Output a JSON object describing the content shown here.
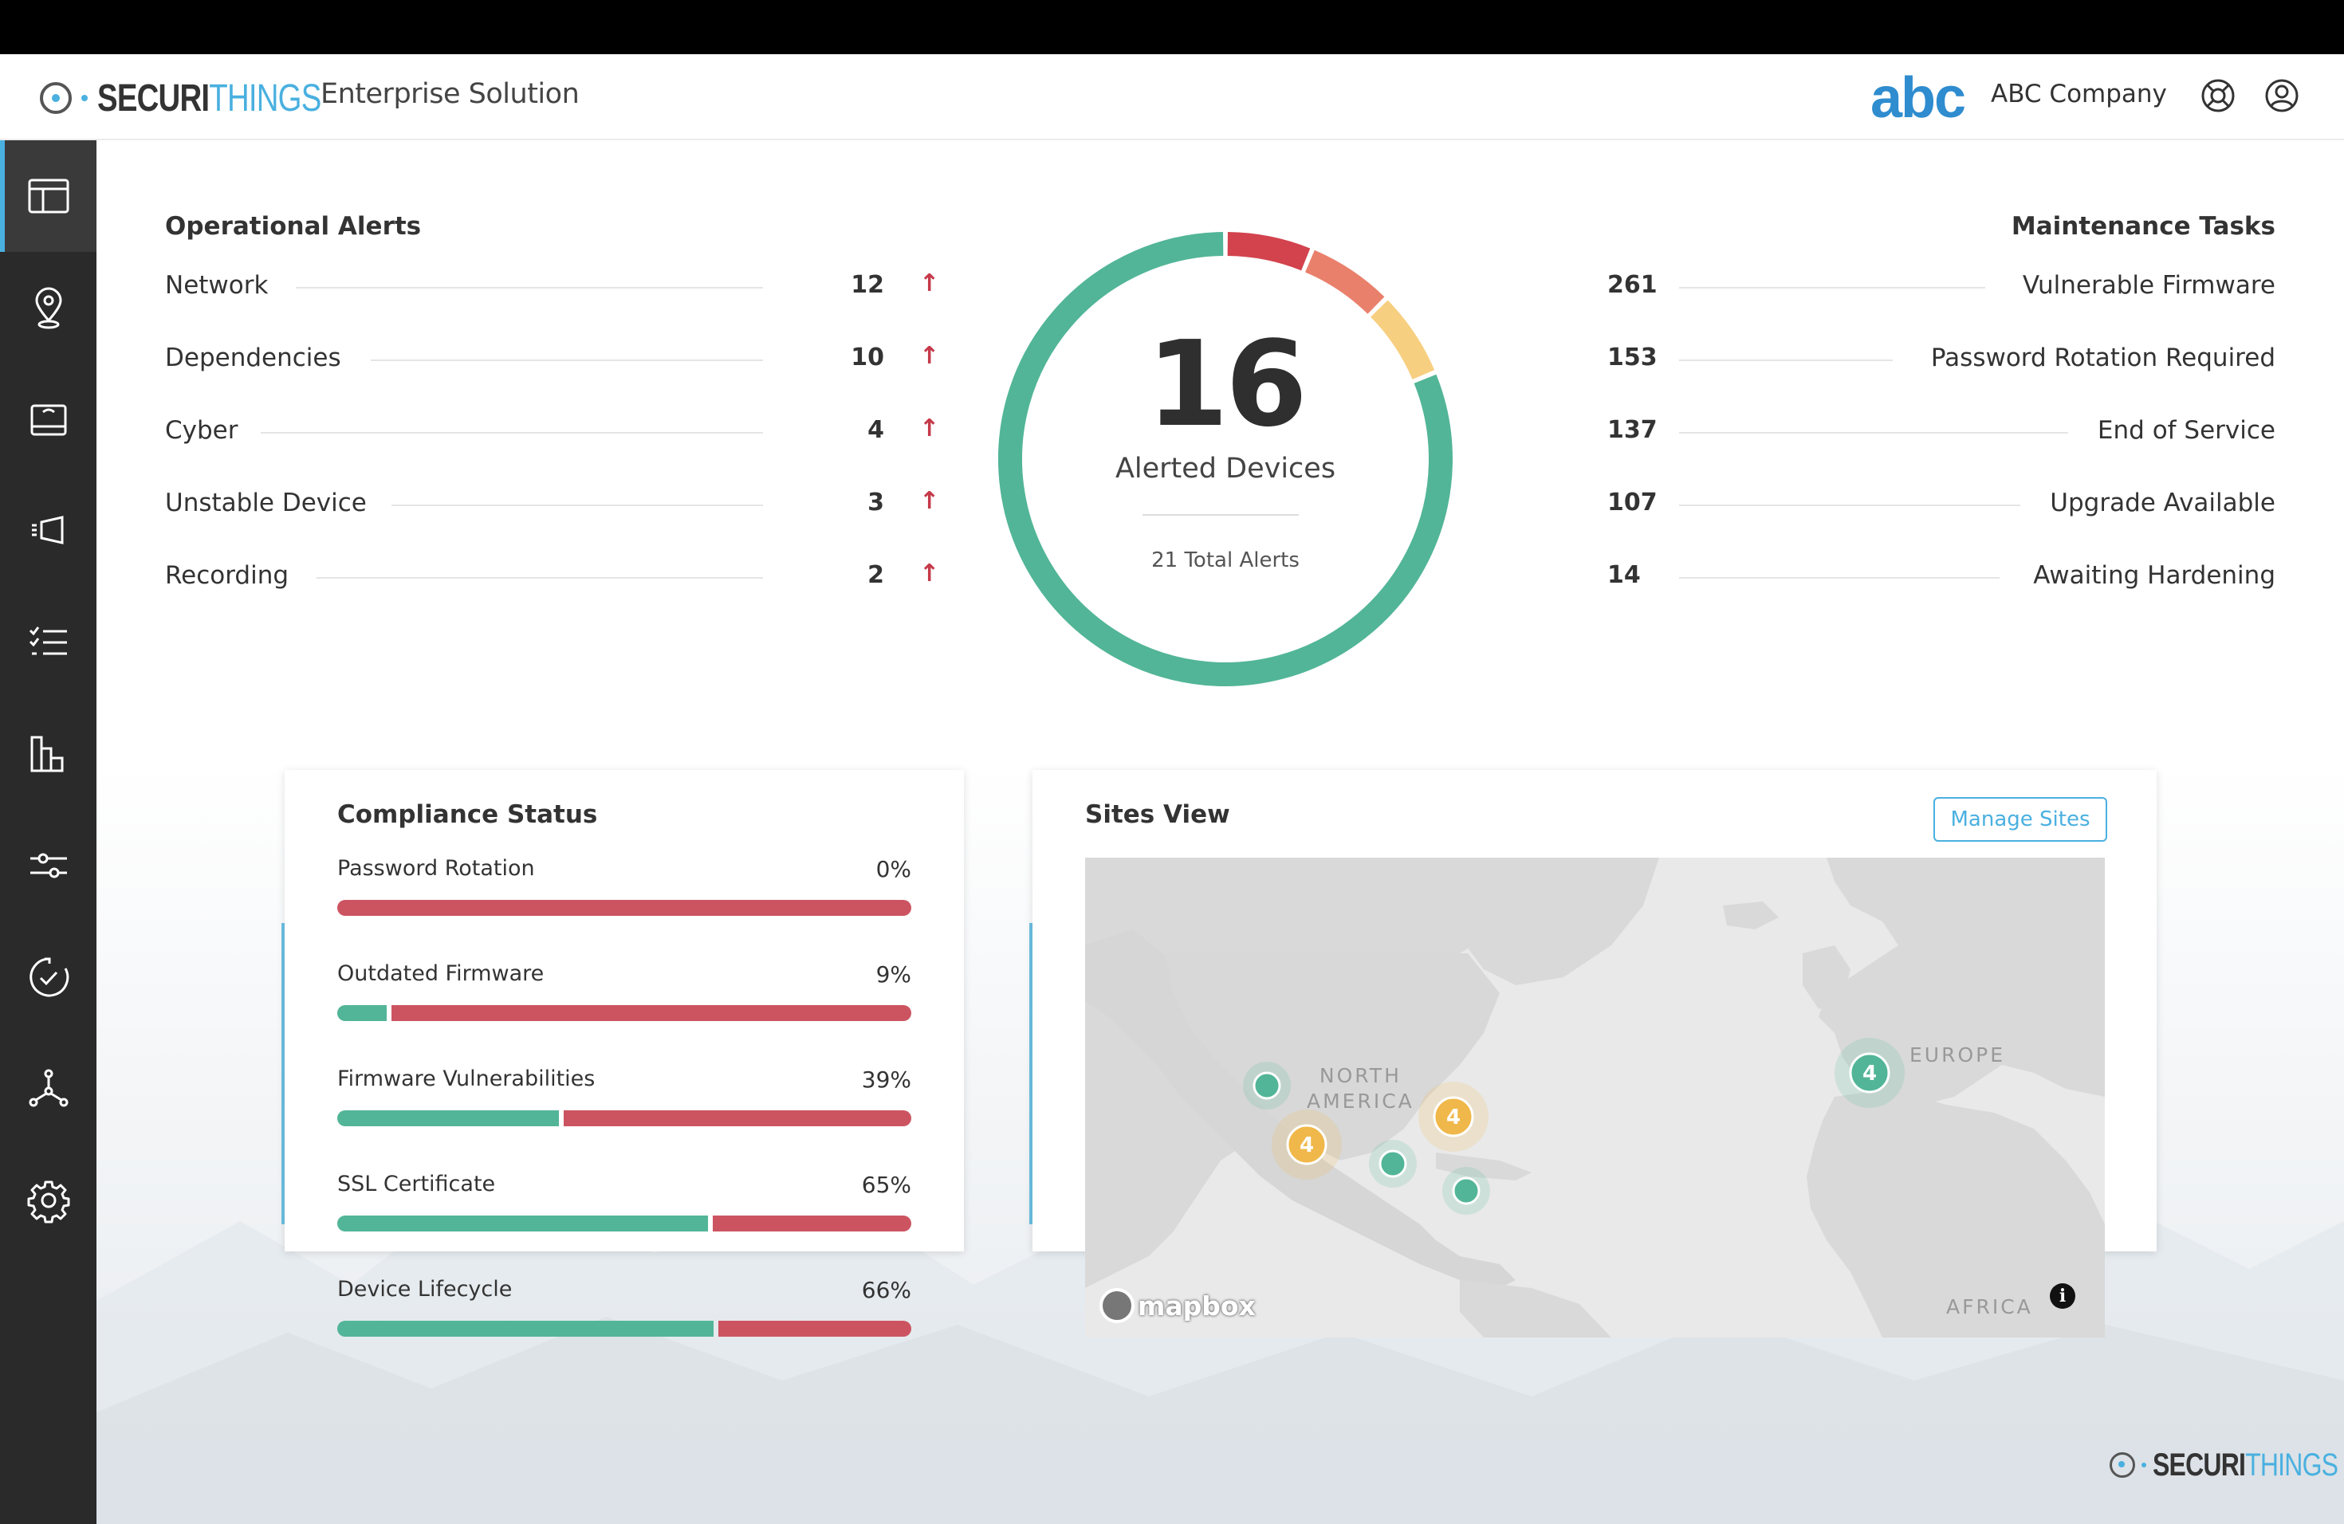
{
  "header": {
    "brand_primary": "SECURI",
    "brand_secondary": "THINGS",
    "product": "Enterprise Solution",
    "customer_logo": "abc",
    "company": "ABC Company",
    "icons": [
      "support-icon",
      "user-account-icon"
    ]
  },
  "sidebar": {
    "items": [
      {
        "name": "dashboard",
        "icon": "dashboard-icon",
        "active": true
      },
      {
        "name": "map",
        "icon": "location-pin-icon"
      },
      {
        "name": "devices",
        "icon": "device-icon"
      },
      {
        "name": "cameras",
        "icon": "camera-icon"
      },
      {
        "name": "tasks",
        "icon": "checklist-icon"
      },
      {
        "name": "reports",
        "icon": "bar-chart-icon"
      },
      {
        "name": "filters",
        "icon": "sliders-icon"
      },
      {
        "name": "history",
        "icon": "refresh-check-icon"
      },
      {
        "name": "network",
        "icon": "network-icon"
      },
      {
        "name": "settings",
        "icon": "gear-icon"
      }
    ]
  },
  "operational_alerts": {
    "title": "Operational Alerts",
    "items": [
      {
        "label": "Network",
        "value": "12",
        "trend": "↑"
      },
      {
        "label": "Dependencies",
        "value": "10",
        "trend": "↑"
      },
      {
        "label": "Cyber",
        "value": "4",
        "trend": "↑"
      },
      {
        "label": "Unstable Device",
        "value": "3",
        "trend": "↑"
      },
      {
        "label": "Recording",
        "value": "2",
        "trend": "↑"
      }
    ]
  },
  "alerted_devices": {
    "count": "16",
    "label": "Alerted Devices",
    "total": "21 Total Alerts",
    "segments": [
      {
        "value": 1,
        "color": "#d2434e"
      },
      {
        "value": 1,
        "color": "#e9806b"
      },
      {
        "value": 1,
        "color": "#f7cf80"
      },
      {
        "value": 13,
        "color": "#52b597"
      }
    ]
  },
  "maintenance_tasks": {
    "title": "Maintenance Tasks",
    "items": [
      {
        "value": "261",
        "label": "Vulnerable Firmware"
      },
      {
        "value": "153",
        "label": "Password Rotation Required"
      },
      {
        "value": "137",
        "label": "End of Service"
      },
      {
        "value": "107",
        "label": "Upgrade Available"
      },
      {
        "value": "14",
        "label": "Awaiting Hardening"
      }
    ]
  },
  "compliance": {
    "title": "Compliance Status",
    "items": [
      {
        "label": "Password Rotation",
        "pct_text": "0%",
        "pct": 0
      },
      {
        "label": "Outdated Firmware",
        "pct_text": "9%",
        "pct": 9
      },
      {
        "label": "Firmware Vulnerabilities",
        "pct_text": "39%",
        "pct": 39
      },
      {
        "label": "SSL Certificate",
        "pct_text": "65%",
        "pct": 65
      },
      {
        "label": "Device Lifecycle",
        "pct_text": "66%",
        "pct": 66
      }
    ],
    "colors": {
      "compliant": "#52b597",
      "noncompliant": "#cc5461"
    }
  },
  "sites": {
    "title": "Sites View",
    "manage_label": "Manage Sites",
    "regions": {
      "north_america": "NORTH\nAMERICA",
      "europe": "EUROPE",
      "africa": "AFRICA"
    },
    "attribution": "mapbox",
    "markers": [
      {
        "count": "",
        "color": "#52b597",
        "region": "pacific-northwest"
      },
      {
        "count": "4",
        "color": "#f0b84a",
        "region": "california"
      },
      {
        "count": "4",
        "color": "#f0b84a",
        "region": "northeast-us"
      },
      {
        "count": "",
        "color": "#52b597",
        "region": "texas"
      },
      {
        "count": "",
        "color": "#52b597",
        "region": "florida"
      },
      {
        "count": "4",
        "color": "#52b597",
        "region": "western-europe"
      }
    ]
  }
}
